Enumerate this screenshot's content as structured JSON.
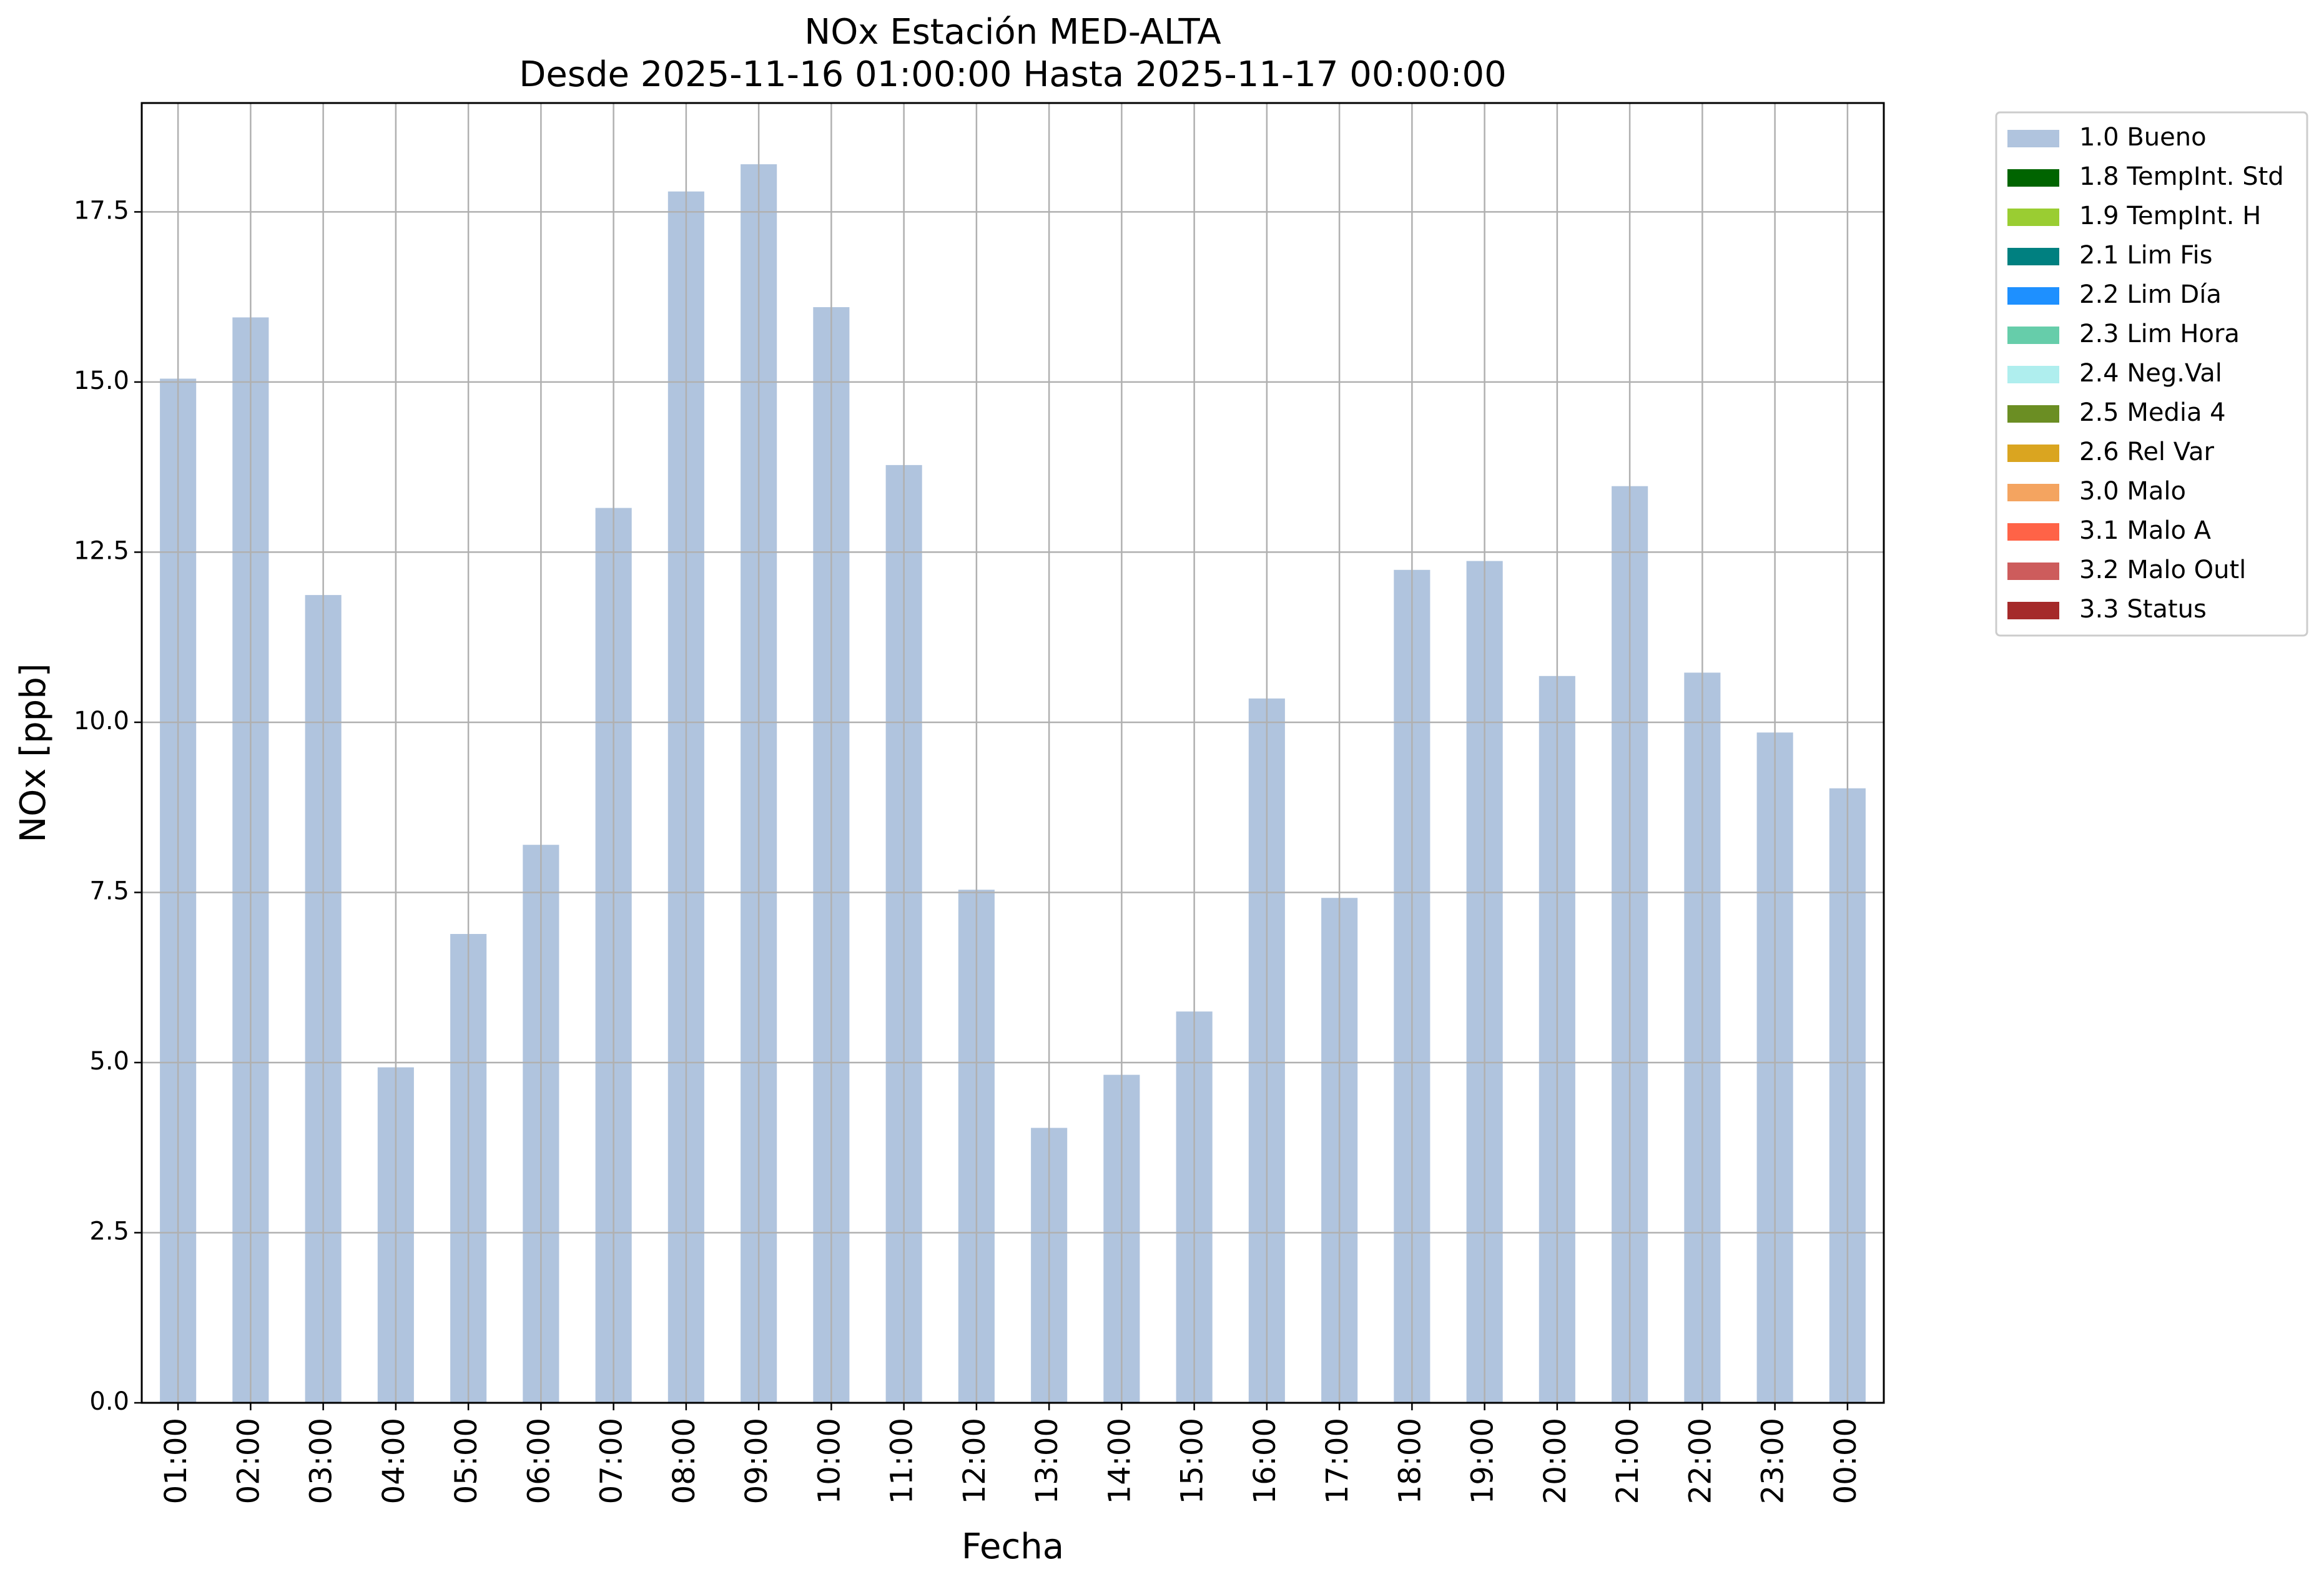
{
  "chart_data": {
    "type": "bar",
    "title": "NOx Estación MED-ALTA",
    "subtitle": "Desde 2025-11-16 01:00:00 Hasta 2025-11-17 00:00:00",
    "xlabel": "Fecha",
    "ylabel": "NOx [ppb]",
    "categories": [
      "01:00",
      "02:00",
      "03:00",
      "04:00",
      "05:00",
      "06:00",
      "07:00",
      "08:00",
      "09:00",
      "10:00",
      "11:00",
      "12:00",
      "13:00",
      "14:00",
      "15:00",
      "16:00",
      "17:00",
      "18:00",
      "19:00",
      "20:00",
      "21:00",
      "22:00",
      "23:00",
      "00:00"
    ],
    "series": [
      {
        "name": "1.0 Bueno",
        "color": "#b0c4de",
        "values": [
          15.05,
          15.95,
          11.87,
          4.93,
          6.89,
          8.2,
          13.15,
          17.8,
          18.2,
          16.1,
          13.78,
          7.54,
          4.04,
          4.82,
          5.75,
          10.35,
          7.42,
          12.24,
          12.37,
          10.68,
          13.47,
          10.73,
          9.85,
          9.03
        ]
      }
    ],
    "ylim": [
      0,
      19.1
    ],
    "yticks": [
      "0.0",
      "2.5",
      "5.0",
      "7.5",
      "10.0",
      "12.5",
      "15.0",
      "17.5"
    ],
    "grid": true,
    "legend_placement": "outside right, top",
    "legend": [
      {
        "label": "1.0 Bueno",
        "color": "#b0c4de"
      },
      {
        "label": "1.8 TempInt. Std",
        "color": "#006400"
      },
      {
        "label": "1.9 TempInt. H",
        "color": "#9acd32"
      },
      {
        "label": "2.1 Lim Fis",
        "color": "#008080"
      },
      {
        "label": "2.2 Lim Día",
        "color": "#1e90ff"
      },
      {
        "label": "2.3 Lim Hora",
        "color": "#66cdaa"
      },
      {
        "label": "2.4 Neg.Val",
        "color": "#afeeee"
      },
      {
        "label": "2.5 Media 4",
        "color": "#6b8e23"
      },
      {
        "label": "2.6 Rel Var",
        "color": "#daa520"
      },
      {
        "label": "3.0 Malo",
        "color": "#f4a460"
      },
      {
        "label": "3.1 Malo A",
        "color": "#ff6347"
      },
      {
        "label": "3.2 Malo Outl",
        "color": "#cd5c5c"
      },
      {
        "label": "3.3 Status",
        "color": "#a52a2a"
      }
    ]
  }
}
